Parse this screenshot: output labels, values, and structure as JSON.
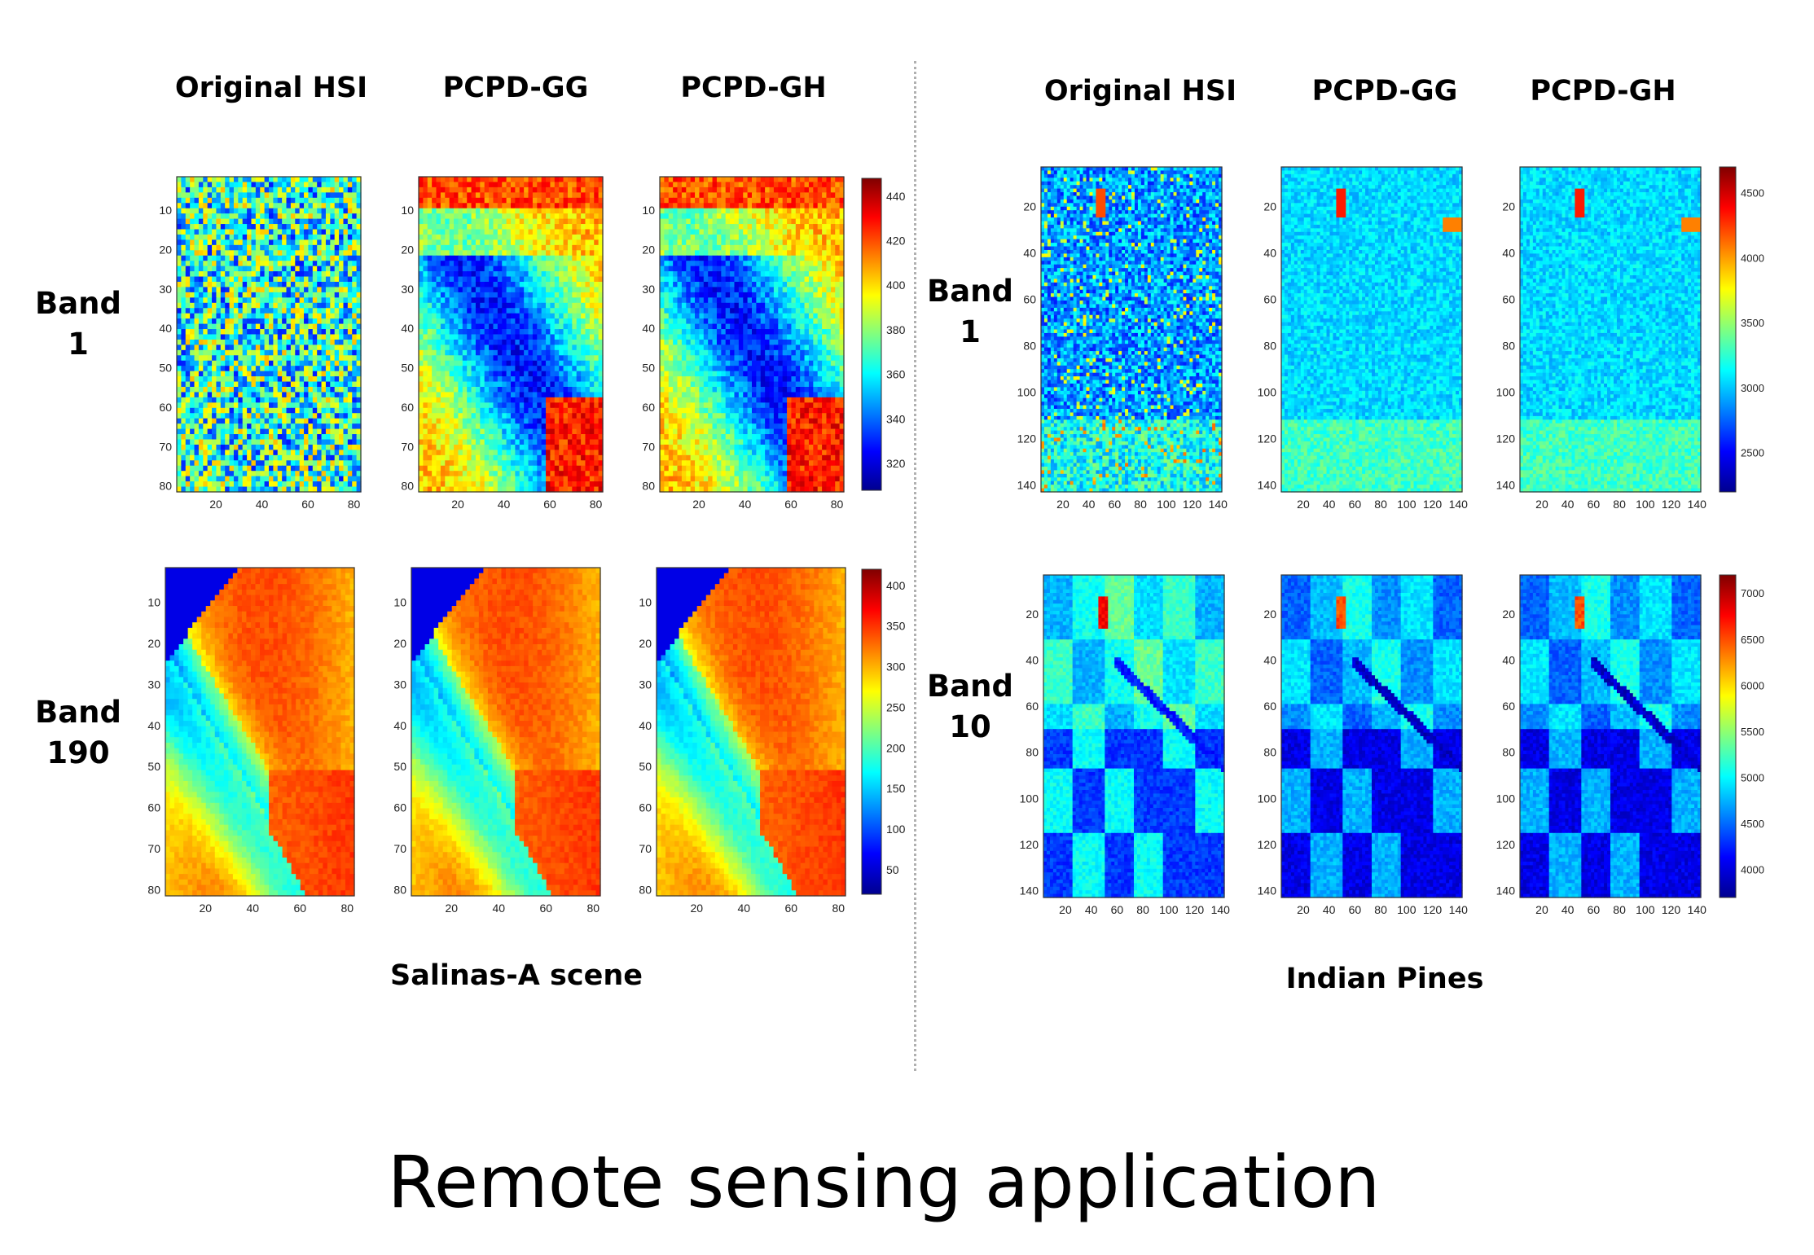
{
  "footer_title": "Remote sensing application",
  "panels": [
    {
      "id": "salinas",
      "caption": "Salinas-A scene",
      "columns": [
        "Original HSI",
        "PCPD-GG",
        "PCPD-GH"
      ],
      "rows": [
        {
          "label_line1": "Band",
          "label_line2": "1",
          "y_ticks": [
            "10",
            "20",
            "30",
            "40",
            "50",
            "60",
            "70",
            "80"
          ],
          "x_ticks": [
            "20",
            "40",
            "60",
            "80"
          ],
          "colorbar_ticks": [
            "440",
            "420",
            "400",
            "380",
            "360",
            "340",
            "320"
          ]
        },
        {
          "label_line1": "Band",
          "label_line2": "190",
          "y_ticks": [
            "10",
            "20",
            "30",
            "40",
            "50",
            "60",
            "70",
            "80"
          ],
          "x_ticks": [
            "20",
            "40",
            "60",
            "80"
          ],
          "colorbar_ticks": [
            "400",
            "350",
            "300",
            "250",
            "200",
            "150",
            "100",
            "50"
          ]
        }
      ]
    },
    {
      "id": "indian",
      "caption": "Indian Pines",
      "columns": [
        "Original HSI",
        "PCPD-GG",
        "PCPD-GH"
      ],
      "rows": [
        {
          "label_line1": "Band",
          "label_line2": "1",
          "y_ticks": [
            "20",
            "40",
            "60",
            "80",
            "100",
            "120",
            "140"
          ],
          "x_ticks": [
            "20",
            "40",
            "60",
            "80",
            "100",
            "120",
            "140"
          ],
          "colorbar_ticks": [
            "4500",
            "4000",
            "3500",
            "3000",
            "2500"
          ]
        },
        {
          "label_line1": "Band",
          "label_line2": "10",
          "y_ticks": [
            "20",
            "40",
            "60",
            "80",
            "100",
            "120",
            "140"
          ],
          "x_ticks": [
            "20",
            "40",
            "60",
            "80",
            "100",
            "120",
            "140"
          ],
          "colorbar_ticks": [
            "7000",
            "6500",
            "6000",
            "5500",
            "5000",
            "4500",
            "4000"
          ]
        }
      ]
    }
  ]
}
